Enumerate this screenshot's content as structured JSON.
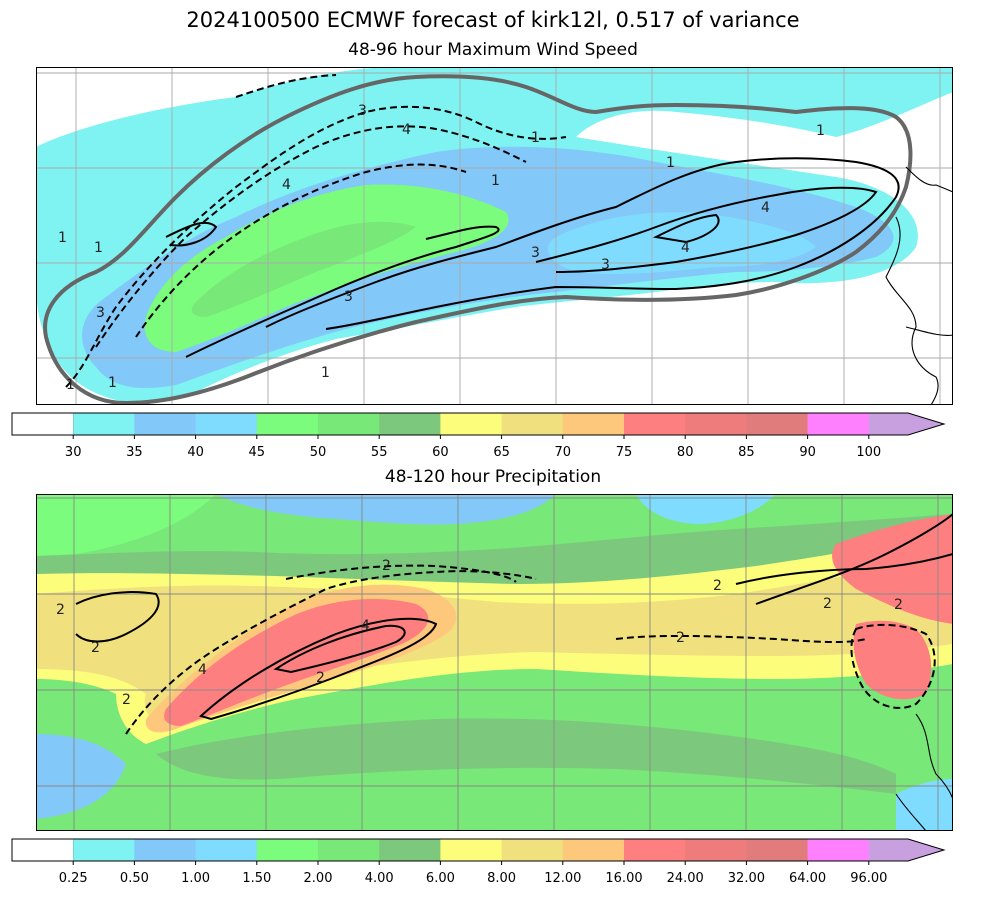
{
  "figure": {
    "title": "2024100500 ECMWF forecast of kirk12l, 0.517 of variance"
  },
  "panels": [
    {
      "title": "48-96 hour Maximum Wind Speed",
      "colorbar": {
        "ticks": [
          "30",
          "35",
          "40",
          "45",
          "50",
          "55",
          "60",
          "65",
          "70",
          "75",
          "80",
          "85",
          "90",
          "100"
        ],
        "colors": [
          "#ffffff",
          "#7ff2f2",
          "#82c8f8",
          "#7fdcff",
          "#7cfc7c",
          "#78e878",
          "#7cc87c",
          "#fdfd7c",
          "#f0e07e",
          "#fdc87c",
          "#fd7f7f",
          "#ee7c7c",
          "#e07c7c",
          "#ff80ff",
          "#c8a0e0"
        ]
      },
      "contour_labels": [
        "3",
        "4",
        "3",
        "4",
        "1",
        "1",
        "1",
        "1",
        "1",
        "1",
        "4",
        "4",
        "3",
        "3",
        "3",
        "1",
        "1",
        "1"
      ]
    },
    {
      "title": "48-120 hour Precipitation",
      "colorbar": {
        "ticks": [
          "0.25",
          "0.50",
          "1.00",
          "1.50",
          "2.00",
          "4.00",
          "6.00",
          "8.00",
          "12.00",
          "16.00",
          "24.00",
          "32.00",
          "64.00",
          "96.00"
        ],
        "colors": [
          "#ffffff",
          "#7ff2f2",
          "#82c8f8",
          "#7fdcff",
          "#7cfc7c",
          "#78e878",
          "#7cc87c",
          "#fdfd7c",
          "#f0e07e",
          "#fdc87c",
          "#fd7f7f",
          "#ee7c7c",
          "#e07c7c",
          "#ff80ff",
          "#c8a0e0"
        ]
      },
      "contour_labels": [
        "2",
        "2",
        "2",
        "2",
        "2",
        "2",
        "4",
        "4",
        "2",
        "2",
        "2"
      ]
    }
  ]
}
